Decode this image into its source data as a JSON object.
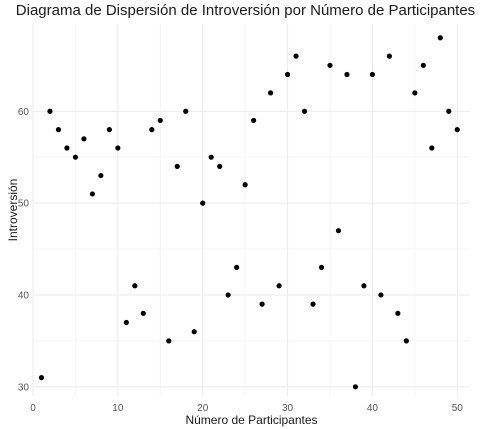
{
  "chart_data": {
    "type": "scatter",
    "title": "Diagrama de Dispersión de Introversión por Número de Participantes",
    "xlabel": "Número de Participantes",
    "ylabel": "Introversión",
    "xlim": [
      0,
      51.5
    ],
    "ylim": [
      29,
      69.5
    ],
    "xticks": [
      0,
      10,
      20,
      30,
      40,
      50
    ],
    "yticks": [
      30,
      40,
      50,
      60
    ],
    "grid": true,
    "legend": "none",
    "points": [
      {
        "x": 1,
        "y": 31
      },
      {
        "x": 2,
        "y": 60
      },
      {
        "x": 3,
        "y": 58
      },
      {
        "x": 4,
        "y": 56
      },
      {
        "x": 5,
        "y": 55
      },
      {
        "x": 6,
        "y": 57
      },
      {
        "x": 7,
        "y": 51
      },
      {
        "x": 8,
        "y": 53
      },
      {
        "x": 9,
        "y": 58
      },
      {
        "x": 10,
        "y": 56
      },
      {
        "x": 11,
        "y": 37
      },
      {
        "x": 12,
        "y": 41
      },
      {
        "x": 13,
        "y": 38
      },
      {
        "x": 14,
        "y": 58
      },
      {
        "x": 15,
        "y": 59
      },
      {
        "x": 16,
        "y": 35
      },
      {
        "x": 17,
        "y": 54
      },
      {
        "x": 18,
        "y": 60
      },
      {
        "x": 19,
        "y": 36
      },
      {
        "x": 20,
        "y": 50
      },
      {
        "x": 21,
        "y": 55
      },
      {
        "x": 22,
        "y": 54
      },
      {
        "x": 23,
        "y": 40
      },
      {
        "x": 24,
        "y": 43
      },
      {
        "x": 25,
        "y": 52
      },
      {
        "x": 26,
        "y": 59
      },
      {
        "x": 27,
        "y": 39
      },
      {
        "x": 28,
        "y": 62
      },
      {
        "x": 29,
        "y": 41
      },
      {
        "x": 30,
        "y": 64
      },
      {
        "x": 31,
        "y": 66
      },
      {
        "x": 32,
        "y": 60
      },
      {
        "x": 33,
        "y": 39
      },
      {
        "x": 34,
        "y": 43
      },
      {
        "x": 35,
        "y": 65
      },
      {
        "x": 36,
        "y": 47
      },
      {
        "x": 37,
        "y": 64
      },
      {
        "x": 38,
        "y": 30
      },
      {
        "x": 39,
        "y": 41
      },
      {
        "x": 40,
        "y": 64
      },
      {
        "x": 41,
        "y": 40
      },
      {
        "x": 42,
        "y": 66
      },
      {
        "x": 43,
        "y": 38
      },
      {
        "x": 44,
        "y": 35
      },
      {
        "x": 45,
        "y": 62
      },
      {
        "x": 46,
        "y": 65
      },
      {
        "x": 47,
        "y": 56
      },
      {
        "x": 48,
        "y": 68
      },
      {
        "x": 49,
        "y": 60
      },
      {
        "x": 50,
        "y": 58
      }
    ]
  }
}
